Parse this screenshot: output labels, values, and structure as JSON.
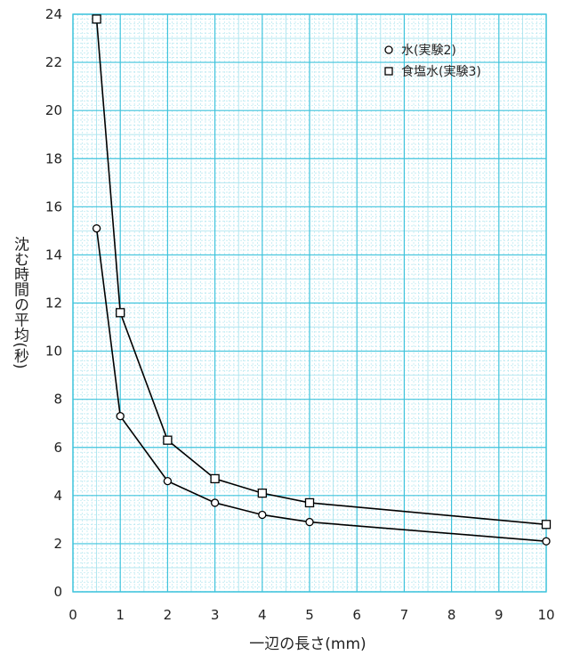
{
  "chart_data": {
    "type": "line",
    "title": "",
    "xlabel": "一辺の長さ(mm)",
    "ylabel": "沈む時間の平均(秒)",
    "xlim": [
      0,
      10
    ],
    "ylim": [
      0,
      24
    ],
    "xticks": [
      "0",
      "1",
      "2",
      "3",
      "4",
      "5",
      "6",
      "7",
      "8",
      "9",
      "10"
    ],
    "yticks": [
      "0",
      "2",
      "4",
      "6",
      "8",
      "10",
      "12",
      "14",
      "16",
      "18",
      "20",
      "22",
      "24"
    ],
    "grid": true,
    "legend_position": "top-right",
    "series": [
      {
        "name": "水(実験2)",
        "marker": "circle",
        "x": [
          0.5,
          1,
          2,
          3,
          4,
          5,
          10
        ],
        "y": [
          15.1,
          7.3,
          4.6,
          3.7,
          3.2,
          2.9,
          2.1
        ]
      },
      {
        "name": "食塩水(実験3)",
        "marker": "square",
        "x": [
          0.5,
          1,
          2,
          3,
          4,
          5,
          10
        ],
        "y": [
          23.8,
          11.6,
          6.3,
          4.7,
          4.1,
          3.7,
          2.8
        ]
      }
    ],
    "colors": {
      "grid_major": "#3ec3dc",
      "grid_minor": "#a9e3ee",
      "line": "#000000"
    }
  }
}
